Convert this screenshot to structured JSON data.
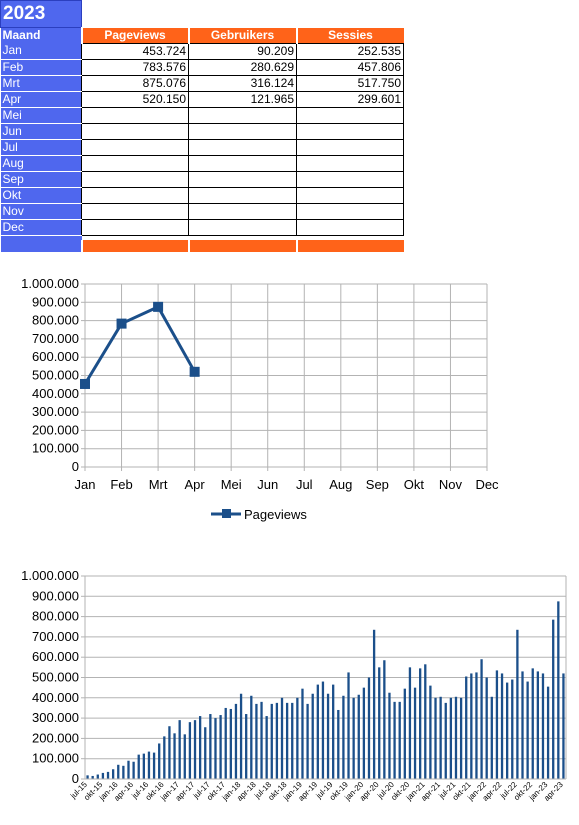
{
  "sheet": {
    "year": "2023",
    "header": [
      "Maand",
      "Pageviews",
      "Gebruikers",
      "Sessies"
    ],
    "rows": [
      {
        "month": "Jan",
        "pageviews": "453.724",
        "users": "90.209",
        "sessions": "252.535"
      },
      {
        "month": "Feb",
        "pageviews": "783.576",
        "users": "280.629",
        "sessions": "457.806"
      },
      {
        "month": "Mrt",
        "pageviews": "875.076",
        "users": "316.124",
        "sessions": "517.750"
      },
      {
        "month": "Apr",
        "pageviews": "520.150",
        "users": "121.965",
        "sessions": "299.601"
      },
      {
        "month": "Mei",
        "pageviews": "",
        "users": "",
        "sessions": ""
      },
      {
        "month": "Jun",
        "pageviews": "",
        "users": "",
        "sessions": ""
      },
      {
        "month": "Jul",
        "pageviews": "",
        "users": "",
        "sessions": ""
      },
      {
        "month": "Aug",
        "pageviews": "",
        "users": "",
        "sessions": ""
      },
      {
        "month": "Sep",
        "pageviews": "",
        "users": "",
        "sessions": ""
      },
      {
        "month": "Okt",
        "pageviews": "",
        "users": "",
        "sessions": ""
      },
      {
        "month": "Nov",
        "pageviews": "",
        "users": "",
        "sessions": ""
      },
      {
        "month": "Dec",
        "pageviews": "",
        "users": "",
        "sessions": ""
      }
    ],
    "colors": {
      "blue": "#4f67ee",
      "orange": "#ff6319"
    }
  },
  "chart_data": [
    {
      "type": "line",
      "categories": [
        "Jan",
        "Feb",
        "Mrt",
        "Apr",
        "Mei",
        "Jun",
        "Jul",
        "Aug",
        "Sep",
        "Okt",
        "Nov",
        "Dec"
      ],
      "series": [
        {
          "name": "Pageviews",
          "values": [
            453724,
            783576,
            875076,
            520150,
            null,
            null,
            null,
            null,
            null,
            null,
            null,
            null
          ],
          "color": "#1b4f8a"
        }
      ],
      "ylim": [
        0,
        1000000
      ],
      "yticks": [
        "0",
        "100.000",
        "200.000",
        "300.000",
        "400.000",
        "500.000",
        "600.000",
        "700.000",
        "800.000",
        "900.000",
        "1.000.000"
      ],
      "grid": true,
      "legend": "bottom"
    },
    {
      "type": "bar",
      "ylim": [
        0,
        1000000
      ],
      "yticks": [
        "0",
        "100.000",
        "200.000",
        "300.000",
        "400.000",
        "500.000",
        "600.000",
        "700.000",
        "800.000",
        "900.000",
        "1.000.000"
      ],
      "grid": true,
      "color": "#1b4f8a",
      "categories": [
        "jul-15",
        "aug-15",
        "sep-15",
        "okt-15",
        "nov-15",
        "dec-15",
        "jan-16",
        "feb-16",
        "mrt-16",
        "apr-16",
        "mei-16",
        "jun-16",
        "jul-16",
        "aug-16",
        "sep-16",
        "okt-16",
        "nov-16",
        "dec-16",
        "jan-17",
        "feb-17",
        "mrt-17",
        "apr-17",
        "mei-17",
        "jun-17",
        "jul-17",
        "aug-17",
        "sep-17",
        "okt-17",
        "nov-17",
        "dec-17",
        "jan-18",
        "feb-18",
        "mrt-18",
        "apr-18",
        "mei-18",
        "jun-18",
        "jul-18",
        "aug-18",
        "sep-18",
        "okt-18",
        "nov-18",
        "dec-18",
        "jan-19",
        "feb-19",
        "mrt-19",
        "apr-19",
        "mei-19",
        "jun-19",
        "jul-19",
        "aug-19",
        "sep-19",
        "okt-19",
        "nov-19",
        "dec-19",
        "jan-20",
        "feb-20",
        "mrt-20",
        "apr-20",
        "mei-20",
        "jun-20",
        "jul-20",
        "aug-20",
        "sep-20",
        "okt-20",
        "nov-20",
        "dec-20",
        "jan-21",
        "feb-21",
        "mrt-21",
        "apr-21",
        "mei-21",
        "jun-21",
        "jul-21",
        "aug-21",
        "sep-21",
        "okt-21",
        "nov-21",
        "dec-21",
        "jan-22",
        "feb-22",
        "mrt-22",
        "apr-22",
        "mei-22",
        "jun-22",
        "jul-22",
        "aug-22",
        "sep-22",
        "okt-22",
        "nov-22",
        "dec-22",
        "jan-23",
        "feb-23",
        "mrt-23",
        "apr-23"
      ],
      "x_tick_labels": [
        "jul-15",
        "okt-15",
        "jan-16",
        "apr-16",
        "jul-16",
        "okt-16",
        "jan-17",
        "apr-17",
        "jul-17",
        "okt-17",
        "jan-18",
        "apr-18",
        "jul-18",
        "okt-18",
        "jan-19",
        "apr-19",
        "jul-19",
        "okt-19",
        "jan-20",
        "apr-20",
        "jul-20",
        "okt-20",
        "jan-21",
        "apr-21",
        "jul-21",
        "okt-21",
        "jan-22",
        "apr-22",
        "jul-22",
        "okt-22",
        "jan-23",
        "apr-23"
      ],
      "values": [
        18000,
        15000,
        22000,
        30000,
        35000,
        48000,
        70000,
        65000,
        90000,
        85000,
        120000,
        125000,
        135000,
        130000,
        175000,
        210000,
        260000,
        225000,
        290000,
        220000,
        280000,
        290000,
        310000,
        255000,
        320000,
        300000,
        315000,
        350000,
        345000,
        370000,
        420000,
        320000,
        410000,
        370000,
        380000,
        310000,
        370000,
        375000,
        400000,
        375000,
        375000,
        400000,
        445000,
        370000,
        420000,
        465000,
        480000,
        420000,
        465000,
        340000,
        410000,
        525000,
        400000,
        415000,
        450000,
        500000,
        735000,
        550000,
        585000,
        425000,
        380000,
        380000,
        445000,
        550000,
        450000,
        545000,
        565000,
        460000,
        400000,
        405000,
        375000,
        400000,
        405000,
        400000,
        505000,
        520000,
        525000,
        590000,
        500000,
        405000,
        535000,
        520000,
        475000,
        490000,
        735000,
        530000,
        480000,
        545000,
        530000,
        520000,
        455000,
        785000,
        875000,
        520000
      ]
    }
  ]
}
